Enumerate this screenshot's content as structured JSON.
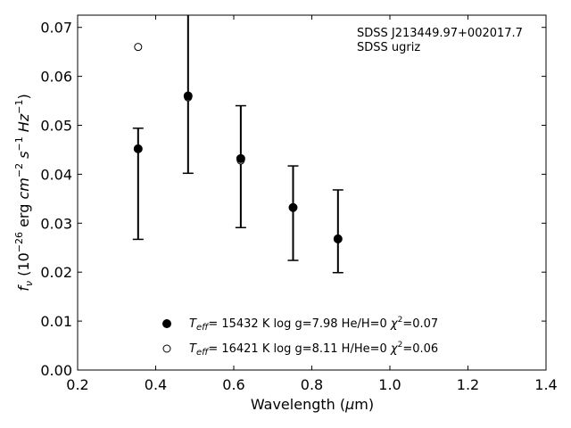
{
  "chart_data": {
    "type": "scatter",
    "title": "",
    "annotation": [
      "SDSS J213449.97+002017.7",
      "SDSS ugriz"
    ],
    "xlabel": {
      "prefix": "Wavelength (",
      "greek": "μ",
      "suffix": "m)"
    },
    "ylabel": {
      "base": "f",
      "sub": "ν",
      "pre_exp": " (10",
      "exp1": "−26",
      "unit1": " erg ",
      "cm": "cm",
      "exp2": "−2",
      "s": " s",
      "exp3": "−1",
      "hz": " Hz",
      "exp4": "−1",
      "close": ")"
    },
    "xlim": [
      0.2,
      1.4
    ],
    "ylim": [
      0.0,
      0.0725
    ],
    "xticks": [
      0.2,
      0.4,
      0.6,
      0.8,
      1.0,
      1.2,
      1.4
    ],
    "xtick_labels": [
      "0.2",
      "0.4",
      "0.6",
      "0.8",
      "1.0",
      "1.2",
      "1.4"
    ],
    "yticks": [
      0.0,
      0.01,
      0.02,
      0.03,
      0.04,
      0.05,
      0.06,
      0.07
    ],
    "ytick_labels": [
      "0.00",
      "0.01",
      "0.02",
      "0.03",
      "0.04",
      "0.05",
      "0.06",
      "0.07"
    ],
    "grid": false,
    "legend_position": "lower-center",
    "observed": {
      "x": [
        0.355,
        0.483,
        0.618,
        0.752,
        0.867
      ],
      "y": [
        0.0452,
        0.056,
        0.043,
        0.0332,
        0.0268
      ],
      "yerr_low": [
        0.0267,
        0.0402,
        0.0291,
        0.0224,
        0.0199
      ],
      "yerr_high": [
        0.0494,
        0.0765,
        0.054,
        0.0417,
        0.0368
      ]
    },
    "series": [
      {
        "marker": "filled-circle",
        "legend": {
          "prefix": "T",
          "sub": "eff",
          "text": "= 15432 K  log g=7.98  He/H=0  ",
          "chi": "χ",
          "chi_exp": "2",
          "chi_val": "=0.07"
        },
        "x": [
          0.355,
          0.483,
          0.618,
          0.752,
          0.867
        ],
        "y": [
          0.0452,
          0.056,
          0.0432,
          0.0332,
          0.0268
        ]
      },
      {
        "marker": "open-circle",
        "legend": {
          "prefix": "T",
          "sub": "eff",
          "text": "= 16421 K  log g=8.11  H/He=0  ",
          "chi": "χ",
          "chi_exp": "2",
          "chi_val": "=0.06"
        },
        "x": [
          0.355,
          0.483,
          0.618,
          0.752,
          0.867
        ],
        "y": [
          0.066,
          0.0557,
          0.0428,
          0.0332,
          0.0267
        ]
      }
    ]
  }
}
